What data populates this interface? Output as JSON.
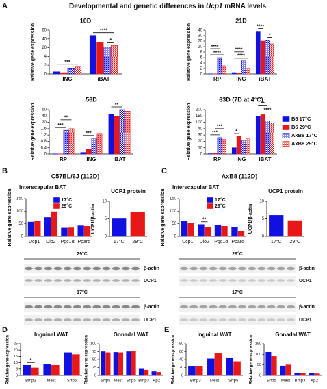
{
  "figure": {
    "panel_labels": [
      "A",
      "B",
      "C",
      "D",
      "E"
    ],
    "title": [
      "Developmental and genetic differences in ",
      "Ucp1",
      " mRNA levels"
    ],
    "strain_titles": [
      "C57BL/6J (112D)",
      "AxB8 (112D)"
    ],
    "blots": [
      {
        "temps": [
          "29°C",
          "17°C"
        ],
        "bands": [
          "β-actin",
          "UCP1",
          "β-actin",
          "UCP1"
        ]
      },
      {
        "temps": [
          "29°C",
          "17°C"
        ],
        "bands": [
          "β-actin",
          "UCP1",
          "β-actin",
          "UCP1"
        ]
      }
    ]
  },
  "chart_data": [
    {
      "type": "bar",
      "title": "10D",
      "ylabel": "Relative gene expression",
      "categories": [
        "ING",
        "iBAT"
      ],
      "series": [
        {
          "color": "#1010e0",
          "values": [
            0.5,
            48
          ]
        },
        {
          "color": "#e81818",
          "values": [
            0.3,
            33
          ]
        },
        {
          "color": "#1010e0",
          "pattern": "check",
          "values": [
            1.2,
            21
          ]
        },
        {
          "color": "#e81818",
          "pattern": "check",
          "values": [
            1.6,
            25
          ]
        }
      ],
      "ylim": [
        0,
        60
      ],
      "yticks": [
        0,
        2,
        4,
        20,
        40,
        60
      ],
      "annotations": [
        "***",
        "****",
        "*"
      ]
    },
    {
      "type": "bar",
      "title": "21D",
      "ylabel": "Relative gene expression",
      "categories": [
        "RP",
        "ING",
        "iBAT"
      ],
      "series": [
        {
          "color": "#1010e0",
          "values": [
            0.05,
            0.5,
            38
          ]
        },
        {
          "color": "#e81818",
          "values": [
            0.05,
            0.3,
            20
          ]
        },
        {
          "color": "#1010e0",
          "pattern": "check",
          "values": [
            6,
            4.8,
            22
          ]
        },
        {
          "color": "#e81818",
          "pattern": "check",
          "values": [
            3,
            2,
            15
          ]
        }
      ],
      "ylim": [
        0,
        40
      ],
      "yticks": [
        0,
        2,
        4,
        6,
        8,
        10,
        20,
        30,
        40
      ],
      "annotations": [
        "****",
        "****",
        "****",
        "****",
        "****",
        "*"
      ]
    },
    {
      "type": "bar",
      "title": "56D",
      "ylabel": "Relative gene expression",
      "categories": [
        "RP",
        "ING",
        "iBAT"
      ],
      "series": [
        {
          "color": "#1010e0",
          "values": [
            0.01,
            0.1,
            45
          ]
        },
        {
          "color": "#e81818",
          "values": [
            0.01,
            0.3,
            40
          ]
        },
        {
          "color": "#1010e0",
          "pattern": "check",
          "values": [
            1.5,
            1.0,
            60
          ]
        },
        {
          "color": "#e81818",
          "pattern": "check",
          "values": [
            1.6,
            1.3,
            55
          ]
        }
      ],
      "ylim": [
        0,
        60
      ],
      "yticks": [
        0,
        0.4,
        0.8,
        1.2,
        1.6,
        20,
        40,
        60
      ],
      "annotations": [
        "***",
        "**",
        "***",
        "**"
      ]
    },
    {
      "type": "bar",
      "title": "63D (7D at 4°C)",
      "ylabel": "Relative gene expression",
      "categories": [
        "RP",
        "ING",
        "iBAT"
      ],
      "series": [
        {
          "name": "B6 17°C",
          "color": "#1010e0",
          "values": [
            0.5,
            10,
            150
          ]
        },
        {
          "name": "B6 29°C",
          "color": "#e81818",
          "values": [
            1,
            28,
            160
          ]
        },
        {
          "name": "AxB8 17°C",
          "color": "#1010e0",
          "pattern": "check",
          "values": [
            26,
            22,
            110
          ]
        },
        {
          "name": "AxB8 29°C",
          "color": "#e81818",
          "pattern": "check",
          "values": [
            23,
            25,
            95
          ]
        }
      ],
      "ylim": [
        0,
        200
      ],
      "yticks": [
        0,
        10,
        20,
        30,
        40,
        100,
        150,
        200
      ],
      "legend": "right",
      "annotations": [
        "***",
        "***",
        "*",
        "**",
        "****"
      ]
    },
    {
      "type": "bar",
      "title": "Interscapular BAT",
      "ylabel": "Relative gene expression",
      "categories": [
        "Ucp1",
        "Dio2",
        "Pgc1α",
        "Pparα"
      ],
      "series": [
        {
          "name": "17°C",
          "color": "#1010e0",
          "values": [
            57,
            75,
            33,
            42
          ]
        },
        {
          "name": "29°C",
          "color": "#e81818",
          "values": [
            60,
            98,
            34,
            40
          ]
        }
      ],
      "ylim": [
        0,
        150
      ],
      "yticks": [
        0,
        50,
        100,
        150
      ],
      "legend": "upper-center"
    },
    {
      "type": "bar",
      "title": "UCP1 protein",
      "ylabel": "UCP1/β-actin",
      "categories": [
        "17°C",
        "29°C"
      ],
      "values": [
        5,
        7
      ],
      "colors": [
        "#1010e0",
        "#e81818"
      ],
      "ylim": [
        0,
        10
      ],
      "yticks": [
        0,
        5,
        10
      ]
    },
    {
      "type": "bar",
      "title": "Interscapular BAT",
      "ylabel": "Relative gene expression",
      "categories": [
        "Ucp1",
        "Dio2",
        "Pgc1α",
        "Pparα"
      ],
      "series": [
        {
          "name": "17°C",
          "color": "#1010e0",
          "values": [
            60,
            47,
            44,
            37
          ]
        },
        {
          "name": "29°C",
          "color": "#e81818",
          "values": [
            52,
            35,
            40,
            20
          ]
        }
      ],
      "ylim": [
        0,
        150
      ],
      "yticks": [
        0,
        50,
        100,
        150
      ],
      "legend": "upper-center",
      "annotations": [
        "**"
      ]
    },
    {
      "type": "bar",
      "title": "UCP1 protein",
      "ylabel": "UCP1/β-actin",
      "categories": [
        "17°C",
        "29°C"
      ],
      "values": [
        6,
        4.5
      ],
      "colors": [
        "#1010e0",
        "#e81818"
      ],
      "ylim": [
        0,
        10
      ],
      "yticks": [
        0,
        5,
        10
      ]
    },
    {
      "type": "bar",
      "title": "Inguinal WAT",
      "ylabel": "Relative gene expression",
      "categories": [
        "Bmp3",
        "Mest",
        "Srfp5"
      ],
      "series": [
        {
          "color": "#1010e0",
          "values": [
            8,
            9,
            18
          ]
        },
        {
          "color": "#e81818",
          "values": [
            6,
            8,
            16.5
          ]
        }
      ],
      "ylim": [
        0,
        25
      ],
      "yticks": [
        0,
        5,
        10,
        15,
        20,
        25
      ],
      "annotations": [
        "*"
      ]
    },
    {
      "type": "bar",
      "title": "Gonadal WAT",
      "ylabel": "Relative gene expression",
      "categories": [
        "Srfp5",
        "Mest",
        "Srfp5",
        "Bmp3",
        "Ap2"
      ],
      "series": [
        {
          "color": "#1010e0",
          "values": [
            75,
            73,
            75,
            20,
            12
          ]
        },
        {
          "color": "#e81818",
          "values": [
            72,
            72,
            76,
            17,
            10
          ]
        }
      ],
      "ylim": [
        0,
        100
      ],
      "yticks": [
        0,
        25,
        50,
        75,
        100
      ]
    },
    {
      "type": "bar",
      "title": "Inguinal WAT",
      "ylabel": "Relative gene expression",
      "categories": [
        "Bmp3",
        "Mest",
        "Srfp5"
      ],
      "series": [
        {
          "color": "#1010e0",
          "values": [
            22,
            42,
            43
          ]
        },
        {
          "color": "#e81818",
          "values": [
            22,
            55,
            35
          ]
        }
      ],
      "ylim": [
        0,
        80
      ],
      "yticks": [
        0,
        20,
        40,
        60,
        80
      ]
    },
    {
      "type": "bar",
      "title": "Gonadal WAT",
      "ylabel": "Relative gene expression",
      "categories": [
        "Srfp5",
        "Mest",
        "Bmp3",
        "Ap2"
      ],
      "series": [
        {
          "color": "#1010e0",
          "values": [
            110,
            45,
            10,
            10
          ]
        },
        {
          "color": "#e81818",
          "values": [
            90,
            50,
            10,
            8
          ]
        }
      ],
      "ylim": [
        0,
        150
      ],
      "yticks": [
        0,
        50,
        100,
        150
      ]
    }
  ]
}
